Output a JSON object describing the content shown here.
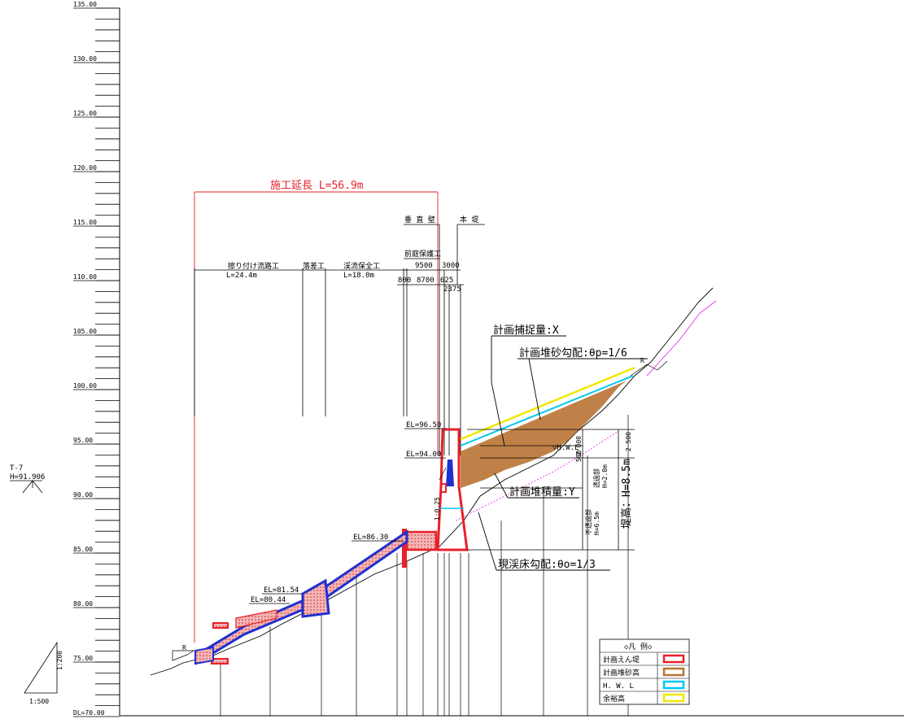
{
  "axis": {
    "ticks": [
      "135.00",
      "130.00",
      "125.00",
      "120.00",
      "115.00",
      "110.00",
      "105.00",
      "100.00",
      "95.00",
      "90.00",
      "85.00",
      "80.00",
      "75.00",
      "DL=70.00"
    ]
  },
  "station": {
    "name": "T-7",
    "height": "H=91.906"
  },
  "scale": {
    "vertical": "1:200",
    "horizontal": "1:500"
  },
  "construction": {
    "length_label": "施工延長 L=56.9m"
  },
  "sections": {
    "channel": "擦り付け流路工",
    "channel_length": "L=24.4m",
    "drop": "落差工",
    "conservation": "渓流保全工",
    "conservation_length": "L=18.0m",
    "vertical_wall": "垂 直 壁",
    "main_dam": "本 堤",
    "apron": "前庭保護工"
  },
  "dims": {
    "d9500": "9500",
    "d3000": "3000",
    "d800": "800",
    "d8700": "8700",
    "d625": "625",
    "d2375": "2375",
    "d2000": "2 000",
    "d2500": "2 500",
    "d500": "500",
    "slope_ratio": "1:0.25"
  },
  "elevations": {
    "el9650": "EL=96.50",
    "el9400": "EL=94.00",
    "el8630": "EL=86.30",
    "el8154": "EL=81.54",
    "el8044": "EL=80.44"
  },
  "annotations": {
    "capture": "計画捕捉量:X",
    "sediment_slope": "計画堆砂勾配:θp=1/6",
    "deposit": "計画堆積量:Y",
    "bed_slope": "現渓床勾配:θo=1/3",
    "hwl": "▽H.W.L",
    "permeable": "透過部",
    "permeable_h": "H=2.0m",
    "impermeable": "不透過部",
    "impermeable_h": "H=6.5m",
    "dam_height": "堤高：H=8.5m",
    "r": "R"
  },
  "legend": {
    "title": "◇凡 例◇",
    "items": [
      {
        "label": "計画えん堤",
        "color": "#e8202a"
      },
      {
        "label": "計画堆砂高",
        "color": "#b87333"
      },
      {
        "label": "H. W. L",
        "color": "#00c8f0"
      },
      {
        "label": "余裕高",
        "color": "#f0e800"
      }
    ]
  }
}
